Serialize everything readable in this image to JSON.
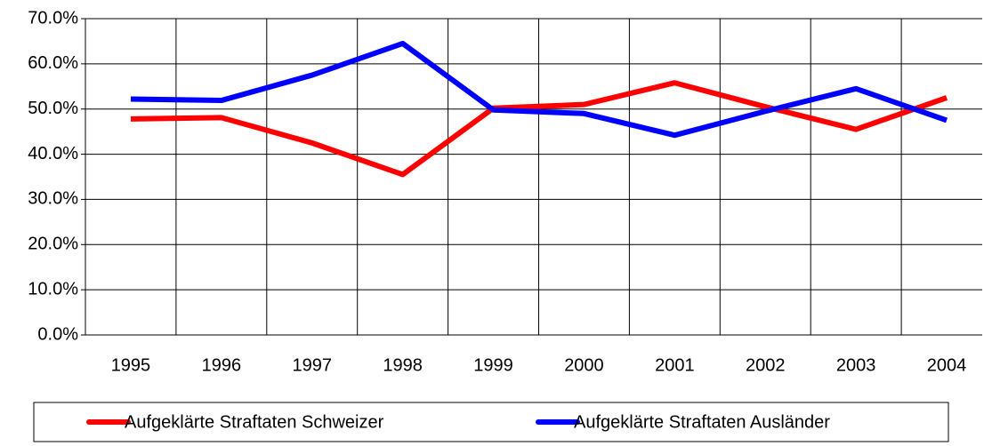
{
  "chart_data": {
    "type": "line",
    "categories": [
      "1995",
      "1996",
      "1997",
      "1998",
      "1999",
      "2000",
      "2001",
      "2002",
      "2003",
      "2004"
    ],
    "series": [
      {
        "name": "Aufgeklärte Straftaten Schweizer",
        "color": "#ff0000",
        "values": [
          47.8,
          48.1,
          42.5,
          35.5,
          50.2,
          51.0,
          55.8,
          50.5,
          45.5,
          52.5
        ]
      },
      {
        "name": "Aufgeklärte Straftaten Ausländer",
        "color": "#0000ff",
        "values": [
          52.2,
          51.9,
          57.5,
          64.5,
          49.8,
          49.0,
          44.2,
          49.5,
          54.5,
          47.5
        ]
      }
    ],
    "ylim": [
      0,
      70
    ],
    "yticks": [
      {
        "value": 0,
        "label": "0.0%"
      },
      {
        "value": 10,
        "label": "10.0%"
      },
      {
        "value": 20,
        "label": "20.0%"
      },
      {
        "value": 30,
        "label": "30.0%"
      },
      {
        "value": 40,
        "label": "40.0%"
      },
      {
        "value": 50,
        "label": "50.0%"
      },
      {
        "value": 60,
        "label": "60.0%"
      },
      {
        "value": 70,
        "label": "70.0%"
      }
    ],
    "grid": true
  }
}
